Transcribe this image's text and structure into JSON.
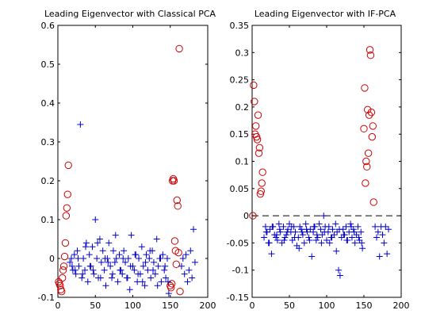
{
  "chart_data": [
    {
      "type": "scatter",
      "title": "Leading Eigenvector with Classical PCA",
      "xlabel": "",
      "ylabel": "",
      "xlim": [
        0,
        200
      ],
      "ylim": [
        -0.1,
        0.6
      ],
      "xticks": [
        0,
        50,
        100,
        150,
        200
      ],
      "yticks": [
        -0.1,
        0,
        0.1,
        0.2,
        0.3,
        0.4,
        0.5,
        0.6
      ],
      "grid": false,
      "legend": "none",
      "series": [
        {
          "marker": "circle",
          "color": "#cc0000",
          "x": [
            1,
            2,
            3,
            4,
            5,
            6,
            7,
            8,
            9,
            10,
            11,
            12,
            13,
            14,
            150,
            151,
            152,
            153,
            154,
            155,
            156,
            157,
            158,
            159,
            160,
            161,
            162,
            163
          ],
          "y": [
            -0.06,
            -0.065,
            -0.07,
            -0.08,
            -0.085,
            -0.05,
            -0.03,
            -0.02,
            0.005,
            0.04,
            0.11,
            0.13,
            0.165,
            0.24,
            -0.07,
            -0.075,
            -0.065,
            0.2,
            0.205,
            0.2,
            0.045,
            0.02,
            -0.015,
            0.15,
            0.135,
            0.015,
            0.54,
            -0.085
          ]
        },
        {
          "marker": "plus",
          "color": "#0000cc",
          "x": [
            16,
            18,
            20,
            22,
            24,
            26,
            28,
            30,
            32,
            34,
            36,
            38,
            40,
            42,
            44,
            46,
            48,
            50,
            52,
            54,
            56,
            58,
            60,
            62,
            64,
            66,
            68,
            70,
            72,
            74,
            76,
            78,
            80,
            82,
            84,
            86,
            88,
            90,
            92,
            94,
            96,
            98,
            100,
            102,
            104,
            106,
            108,
            110,
            112,
            114,
            116,
            118,
            120,
            122,
            124,
            126,
            128,
            130,
            132,
            134,
            136,
            138,
            140,
            142,
            144,
            146,
            148,
            165,
            167,
            169,
            171,
            173,
            175,
            177,
            179,
            181,
            183,
            19,
            23,
            27,
            33,
            37,
            43,
            47,
            53,
            57,
            63,
            67,
            73,
            77,
            83,
            87,
            93,
            97,
            103,
            107,
            113,
            117,
            123,
            127,
            133,
            137,
            143,
            147
          ],
          "y": [
            -0.01,
            0.0,
            -0.03,
            0.01,
            -0.04,
            0.02,
            -0.02,
            0.345,
            -0.05,
            0.0,
            -0.03,
            0.04,
            -0.06,
            0.01,
            -0.02,
            0.03,
            -0.04,
            0.1,
            0.0,
            -0.05,
            0.05,
            -0.01,
            0.02,
            -0.03,
            -0.07,
            0.0,
            0.04,
            -0.02,
            -0.05,
            0.02,
            -0.01,
            0.0,
            -0.06,
            0.01,
            -0.03,
            -0.04,
            0.02,
            -0.01,
            -0.05,
            0.0,
            -0.08,
            0.06,
            -0.02,
            -0.03,
            0.01,
            -0.06,
            0.0,
            -0.04,
            0.03,
            -0.02,
            -0.07,
            0.01,
            -0.03,
            0.0,
            -0.05,
            0.02,
            -0.01,
            -0.04,
            0.05,
            -0.02,
            0.0,
            -0.06,
            0.01,
            -0.03,
            -0.05,
            0.0,
            -0.09,
            -0.02,
            0.0,
            -0.04,
            0.01,
            -0.06,
            -0.03,
            0.02,
            -0.05,
            0.075,
            -0.01,
            -0.02,
            -0.03,
            0.0,
            -0.04,
            0.03,
            -0.02,
            -0.03,
            0.04,
            -0.05,
            0.0,
            -0.01,
            -0.04,
            0.06,
            -0.03,
            0.0,
            -0.05,
            -0.02,
            0.01,
            -0.04,
            -0.06,
            -0.01,
            0.02,
            -0.03,
            -0.07,
            0.0,
            -0.02,
            -0.06
          ]
        }
      ]
    },
    {
      "type": "scatter",
      "title": "Leading Eigenvector with IF-PCA",
      "xlabel": "",
      "ylabel": "",
      "xlim": [
        0,
        200
      ],
      "ylim": [
        -0.15,
        0.35
      ],
      "xticks": [
        0,
        50,
        100,
        150,
        200
      ],
      "yticks": [
        -0.15,
        -0.1,
        -0.05,
        0,
        0.05,
        0.1,
        0.15,
        0.2,
        0.25,
        0.3,
        0.35
      ],
      "grid": false,
      "legend": "none",
      "reference_line": {
        "y": 0,
        "style": "dashed"
      },
      "series": [
        {
          "marker": "circle",
          "color": "#cc0000",
          "x": [
            1,
            2,
            3,
            4,
            5,
            6,
            7,
            8,
            9,
            10,
            11,
            12,
            13,
            14,
            150,
            151,
            152,
            153,
            154,
            155,
            156,
            157,
            158,
            159,
            160,
            161,
            162,
            163
          ],
          "y": [
            0.0,
            0.24,
            0.21,
            0.15,
            0.165,
            0.145,
            0.14,
            0.185,
            0.115,
            0.125,
            0.04,
            0.045,
            0.06,
            0.08,
            0.16,
            0.235,
            0.06,
            0.1,
            0.09,
            0.195,
            0.115,
            0.185,
            0.305,
            0.295,
            0.19,
            0.145,
            0.165,
            0.025
          ]
        },
        {
          "marker": "plus",
          "color": "#0000cc",
          "x": [
            16,
            18,
            20,
            22,
            24,
            26,
            28,
            30,
            32,
            34,
            36,
            38,
            40,
            42,
            44,
            46,
            48,
            50,
            52,
            54,
            56,
            58,
            60,
            62,
            64,
            66,
            68,
            70,
            72,
            74,
            76,
            78,
            80,
            82,
            84,
            86,
            88,
            90,
            92,
            94,
            96,
            98,
            100,
            102,
            104,
            106,
            108,
            110,
            112,
            114,
            116,
            118,
            120,
            122,
            124,
            126,
            128,
            130,
            132,
            134,
            136,
            138,
            140,
            142,
            144,
            146,
            148,
            165,
            167,
            169,
            171,
            173,
            175,
            177,
            179,
            181,
            183,
            19,
            23,
            27,
            33,
            37,
            43,
            47,
            53,
            57,
            63,
            67,
            73,
            77,
            83,
            87,
            93,
            97,
            103,
            107,
            113,
            117,
            123,
            127,
            133,
            137,
            143,
            147
          ],
          "y": [
            -0.04,
            -0.02,
            -0.03,
            -0.05,
            -0.025,
            -0.07,
            -0.02,
            -0.035,
            -0.04,
            -0.045,
            -0.015,
            -0.03,
            -0.05,
            -0.02,
            -0.04,
            -0.035,
            -0.025,
            -0.015,
            -0.03,
            -0.045,
            -0.02,
            -0.03,
            -0.055,
            -0.04,
            -0.02,
            -0.025,
            -0.035,
            -0.05,
            -0.015,
            -0.03,
            -0.04,
            -0.025,
            -0.075,
            -0.03,
            -0.02,
            -0.045,
            -0.04,
            -0.015,
            -0.025,
            -0.035,
            0.0,
            -0.02,
            -0.045,
            -0.03,
            -0.05,
            -0.04,
            -0.025,
            -0.035,
            -0.015,
            -0.03,
            -0.1,
            -0.11,
            -0.04,
            -0.025,
            -0.035,
            -0.02,
            -0.045,
            -0.03,
            -0.015,
            -0.04,
            -0.025,
            -0.05,
            -0.035,
            -0.02,
            -0.045,
            -0.03,
            -0.06,
            -0.02,
            -0.04,
            -0.03,
            -0.075,
            -0.02,
            -0.035,
            -0.05,
            -0.02,
            -0.07,
            -0.025,
            -0.03,
            -0.05,
            -0.02,
            -0.035,
            -0.025,
            -0.045,
            -0.03,
            -0.02,
            -0.04,
            -0.06,
            -0.03,
            -0.025,
            -0.045,
            -0.02,
            -0.035,
            -0.05,
            -0.03,
            -0.02,
            -0.04,
            -0.065,
            -0.025,
            -0.035,
            -0.045,
            -0.02,
            -0.03,
            -0.04,
            -0.05
          ]
        }
      ]
    }
  ]
}
